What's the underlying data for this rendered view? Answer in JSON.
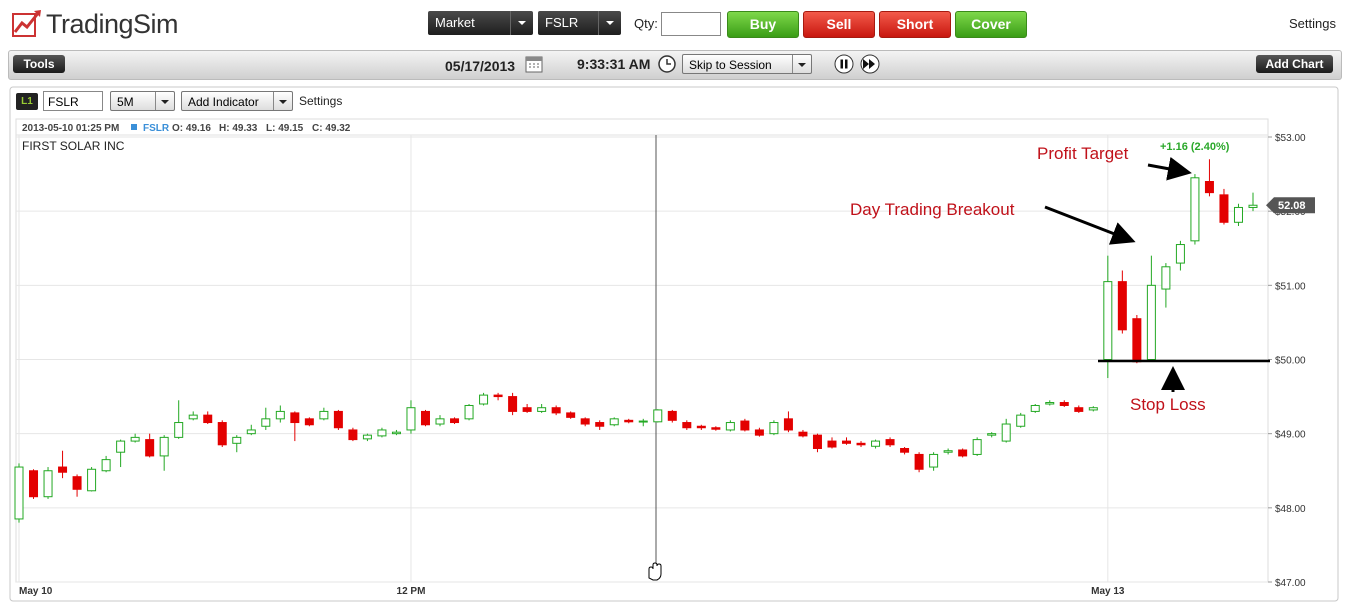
{
  "header": {
    "logo": "TradingSim",
    "order_type": "Market",
    "symbol": "FSLR",
    "qty_label": "Qty:",
    "buttons": [
      "Buy",
      "Sell",
      "Short",
      "Cover"
    ],
    "settings": "Settings"
  },
  "toolbar": {
    "tools": "Tools",
    "date": "05/17/2013",
    "time": "9:33:31 AM",
    "skip": "Skip to Session",
    "add_chart": "Add Chart"
  },
  "chart_toolbar": {
    "level": "L1",
    "symbol": "FSLR",
    "interval": "5M",
    "add_indicator": "Add Indicator",
    "settings": "Settings"
  },
  "chart_data": {
    "type": "candlestick",
    "info": {
      "datetime": "2013-05-10 01:25 PM",
      "symbol": "FSLR",
      "open": "O: 49.16",
      "high": "H: 49.33",
      "low": "L: 49.15",
      "close": "C: 49.32"
    },
    "company": "FIRST SOLAR INC",
    "up_color": "#22a822",
    "down_color": "#e30000",
    "ylim": [
      47,
      53
    ],
    "yticks": [
      {
        "value": 47,
        "label": "$47.00"
      },
      {
        "value": 48,
        "label": "$48.00"
      },
      {
        "value": 49,
        "label": "$49.00"
      },
      {
        "value": 50,
        "label": "$50.00"
      },
      {
        "value": 51,
        "label": "$51.00"
      },
      {
        "value": 52,
        "label": "$52.00"
      },
      {
        "value": 53,
        "label": "$53.00"
      }
    ],
    "grid": true,
    "categories": [
      "May 10",
      null,
      null,
      null,
      null,
      null,
      null,
      null,
      null,
      null,
      null,
      null,
      null,
      null,
      null,
      null,
      null,
      null,
      null,
      null,
      null,
      null,
      null,
      null,
      null,
      null,
      null,
      "12 PM",
      null,
      null,
      null,
      null,
      null,
      null,
      null,
      null,
      null,
      null,
      null,
      null,
      null,
      null,
      null,
      null,
      null,
      null,
      null,
      null,
      null,
      null,
      null,
      null,
      null,
      null,
      null,
      null,
      null,
      null,
      null,
      null,
      null,
      null,
      null,
      null,
      null,
      null,
      null,
      null,
      null,
      null,
      null,
      null,
      null,
      null,
      null,
      "May 13",
      null,
      null,
      null,
      null,
      null,
      null,
      null,
      null,
      null,
      null
    ],
    "open": [
      47.85,
      48.5,
      48.15,
      48.55,
      48.42,
      48.23,
      48.5,
      48.75,
      48.9,
      48.92,
      48.7,
      48.95,
      49.2,
      49.25,
      49.15,
      48.87,
      49.0,
      49.1,
      49.2,
      49.28,
      49.2,
      49.2,
      49.3,
      49.05,
      48.93,
      48.97,
      49.0,
      49.05,
      49.3,
      49.13,
      49.2,
      49.2,
      49.4,
      49.52,
      49.5,
      49.35,
      49.3,
      49.35,
      49.28,
      49.2,
      49.15,
      49.12,
      49.18,
      49.16,
      49.16,
      49.3,
      49.15,
      49.1,
      49.08,
      49.05,
      49.17,
      49.05,
      49.0,
      49.2,
      49.02,
      48.98,
      48.9,
      48.9,
      48.87,
      48.83,
      48.92,
      48.8,
      48.72,
      48.55,
      48.75,
      48.78,
      48.72,
      48.98,
      48.9,
      49.1,
      49.3,
      49.4,
      49.42,
      49.35,
      49.32,
      50.0,
      51.05,
      50.55,
      50.0,
      50.95,
      51.3,
      51.6,
      52.4,
      52.22,
      51.85,
      52.05
    ],
    "high": [
      48.6,
      48.52,
      48.55,
      48.77,
      48.45,
      48.55,
      48.7,
      48.92,
      49.0,
      49.0,
      48.98,
      49.45,
      49.3,
      49.3,
      49.18,
      48.98,
      49.12,
      49.35,
      49.38,
      49.3,
      49.22,
      49.35,
      49.32,
      49.08,
      49.0,
      49.08,
      49.05,
      49.45,
      49.32,
      49.25,
      49.22,
      49.4,
      49.55,
      49.55,
      49.55,
      49.4,
      49.4,
      49.38,
      49.3,
      49.22,
      49.18,
      49.22,
      49.2,
      49.2,
      49.33,
      49.32,
      49.18,
      49.12,
      49.1,
      49.18,
      49.2,
      49.08,
      49.18,
      49.3,
      49.05,
      49.0,
      48.95,
      48.95,
      48.9,
      48.92,
      48.95,
      48.82,
      48.75,
      48.75,
      48.8,
      48.8,
      48.95,
      49.02,
      49.2,
      49.28,
      49.4,
      49.45,
      49.45,
      49.38,
      49.37,
      51.4,
      51.2,
      50.6,
      51.4,
      51.3,
      51.6,
      52.5,
      52.7,
      52.3,
      52.1,
      52.25
    ],
    "low": [
      47.8,
      48.12,
      48.12,
      48.4,
      48.15,
      48.22,
      48.48,
      48.55,
      48.88,
      48.68,
      48.5,
      48.93,
      49.18,
      49.13,
      48.82,
      48.75,
      48.98,
      49.05,
      49.15,
      48.9,
      49.1,
      49.18,
      49.05,
      48.9,
      48.9,
      48.95,
      48.98,
      49.0,
      49.1,
      49.1,
      49.13,
      49.18,
      49.38,
      49.45,
      49.25,
      49.28,
      49.28,
      49.25,
      49.2,
      49.1,
      49.05,
      49.1,
      49.14,
      49.1,
      49.15,
      49.15,
      49.05,
      49.05,
      49.04,
      49.03,
      49.03,
      48.96,
      48.98,
      49.02,
      48.95,
      48.75,
      48.8,
      48.85,
      48.82,
      48.8,
      48.82,
      48.72,
      48.48,
      48.5,
      48.72,
      48.68,
      48.7,
      48.95,
      48.88,
      49.08,
      49.28,
      49.38,
      49.36,
      49.28,
      49.3,
      49.75,
      50.35,
      49.95,
      49.98,
      50.7,
      51.2,
      51.55,
      52.2,
      51.82,
      51.8,
      52.0
    ],
    "close": [
      48.55,
      48.15,
      48.5,
      48.48,
      48.25,
      48.52,
      48.65,
      48.9,
      48.95,
      48.7,
      48.95,
      49.15,
      49.25,
      49.15,
      48.85,
      48.95,
      49.05,
      49.2,
      49.3,
      49.15,
      49.12,
      49.3,
      49.08,
      48.92,
      48.98,
      49.05,
      49.02,
      49.35,
      49.12,
      49.2,
      49.15,
      49.38,
      49.52,
      49.5,
      49.3,
      49.3,
      49.35,
      49.28,
      49.22,
      49.13,
      49.1,
      49.2,
      49.16,
      49.17,
      49.32,
      49.18,
      49.08,
      49.08,
      49.06,
      49.15,
      49.05,
      48.98,
      49.15,
      49.05,
      48.97,
      48.8,
      48.82,
      48.87,
      48.85,
      48.9,
      48.85,
      48.75,
      48.52,
      48.72,
      48.77,
      48.7,
      48.92,
      49.0,
      49.13,
      49.25,
      49.38,
      49.42,
      49.38,
      49.3,
      49.35,
      51.05,
      50.4,
      49.97,
      51.0,
      51.25,
      51.55,
      52.45,
      52.25,
      51.85,
      52.05,
      52.08
    ],
    "last_price": 52.08,
    "change_label": "+1.16 (2.40%)",
    "annotations": {
      "profit_target": "Profit Target",
      "breakout": "Day Trading Breakout",
      "stop_loss": "Stop Loss"
    }
  }
}
